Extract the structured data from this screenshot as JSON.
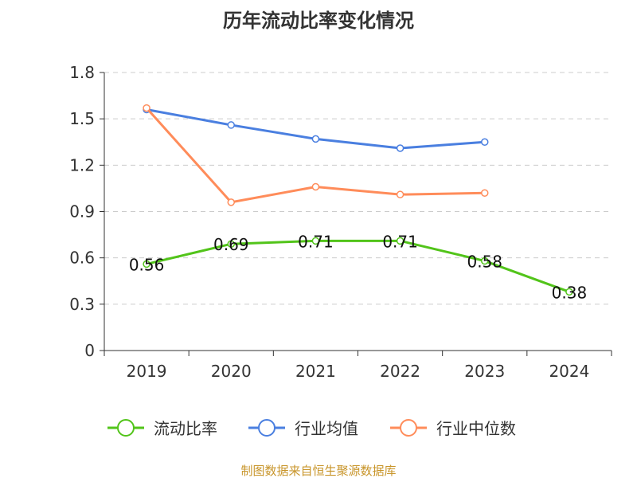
{
  "chart_data": {
    "type": "line",
    "title": "历年流动比率变化情况",
    "categories": [
      "2019",
      "2020",
      "2021",
      "2022",
      "2023",
      "2024"
    ],
    "yticks": [
      "0",
      "0.3",
      "0.6",
      "0.9",
      "1.2",
      "1.5",
      "1.8"
    ],
    "ylim": [
      0,
      1.8
    ],
    "grid": true,
    "legend_position": "bottom",
    "series": [
      {
        "name": "流动比率",
        "color": "#52c41a",
        "values": [
          0.56,
          0.69,
          0.71,
          0.71,
          0.58,
          0.38
        ],
        "labels": [
          "0.56",
          "0.69",
          "0.71",
          "0.71",
          "0.58",
          "0.38"
        ]
      },
      {
        "name": "行业均值",
        "color": "#4a7fe0",
        "values": [
          1.56,
          1.46,
          1.37,
          1.31,
          1.35,
          null
        ]
      },
      {
        "name": "行业中位数",
        "color": "#ff8c5a",
        "values": [
          1.57,
          0.96,
          1.06,
          1.01,
          1.02,
          null
        ]
      }
    ],
    "source": "制图数据来自恒生聚源数据库"
  }
}
